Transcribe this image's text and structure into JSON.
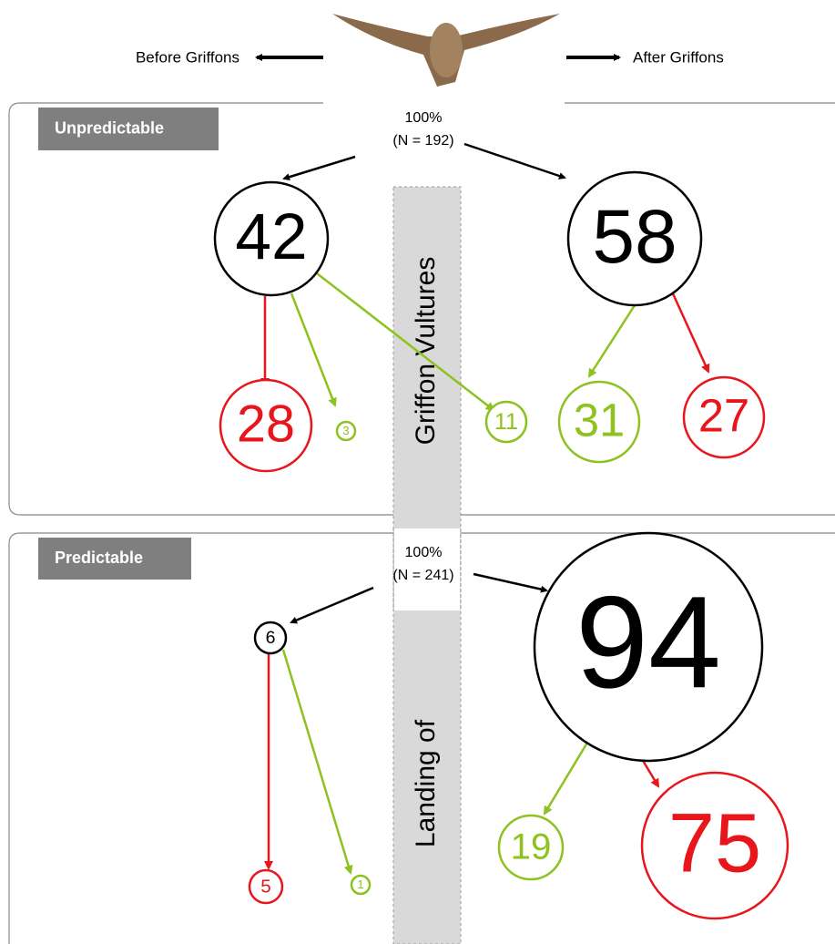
{
  "header": {
    "left": "Before Griffons",
    "right": "After Griffons"
  },
  "panels": [
    {
      "tag": "Unpredictable",
      "total": "100%",
      "n": "(N = 192)",
      "band_text": "Griffon Vultures",
      "nodes": [
        {
          "label": "42"
        },
        {
          "label": "58"
        },
        {
          "label": "28"
        },
        {
          "label": "3"
        },
        {
          "label": "11"
        },
        {
          "label": "31"
        },
        {
          "label": "27"
        }
      ]
    },
    {
      "tag": "Predictable",
      "total": "100%",
      "n": "(N = 241)",
      "band_text": "Landing of",
      "nodes": [
        {
          "label": "6"
        },
        {
          "label": "94"
        },
        {
          "label": "5"
        },
        {
          "label": "1"
        },
        {
          "label": "19"
        },
        {
          "label": "75"
        }
      ]
    }
  ]
}
